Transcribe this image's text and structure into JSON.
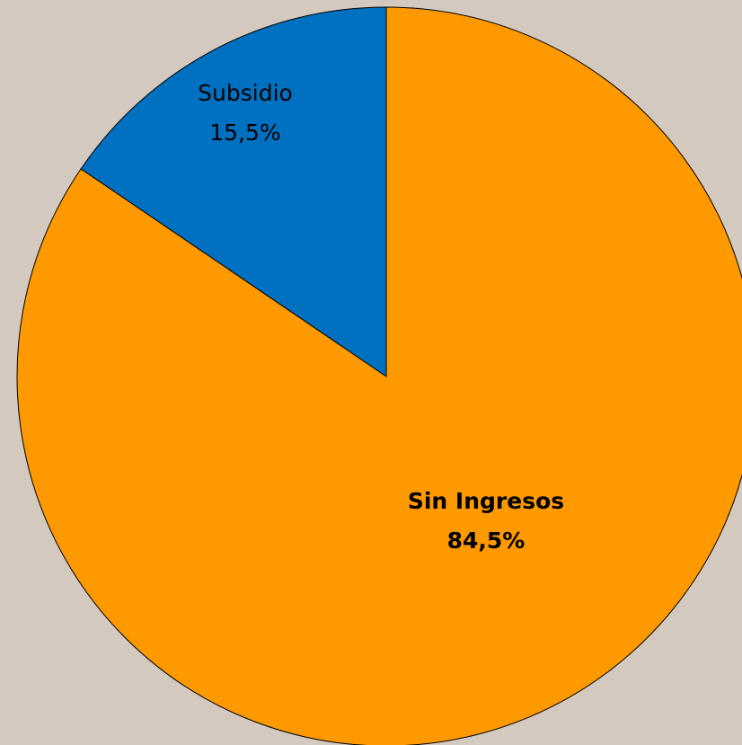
{
  "chart_data": {
    "type": "pie",
    "title": "",
    "background_color": "#d3c9bf",
    "slices": [
      {
        "label": "Subsidio",
        "value": 15.5,
        "value_label": "15,5%",
        "color": "#0070c0",
        "bold": false
      },
      {
        "label": "Sin Ingresos",
        "value": 84.5,
        "value_label": "84,5%",
        "color": "#ff9900",
        "bold": true
      }
    ],
    "start": "12 o'clock",
    "direction": "counterclockwise",
    "legend": "none"
  }
}
